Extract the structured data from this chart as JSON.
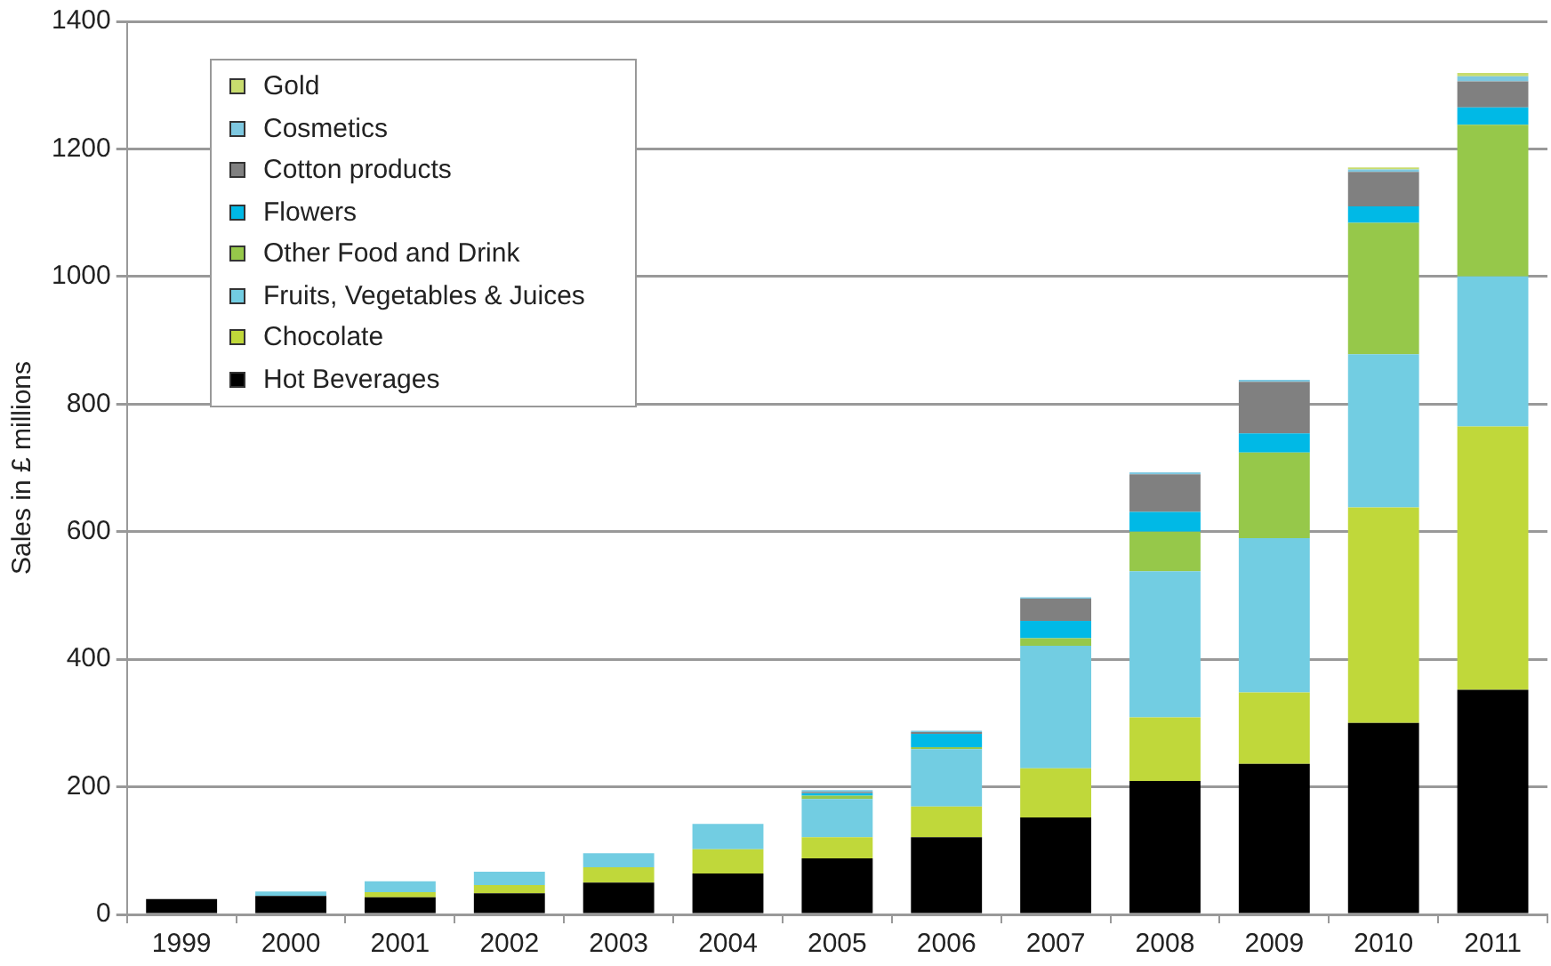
{
  "chart_data": {
    "type": "bar",
    "stacked": true,
    "ylabel": "Sales in £ millions",
    "categories": [
      "1999",
      "2000",
      "2001",
      "2002",
      "2003",
      "2004",
      "2005",
      "2006",
      "2007",
      "2008",
      "2009",
      "2010",
      "2011"
    ],
    "series": [
      {
        "name": "Hot Beverages",
        "color": "#000000",
        "values": [
          24,
          29,
          27,
          33,
          50,
          64,
          88,
          121,
          152,
          209,
          236,
          300,
          352
        ]
      },
      {
        "name": "Chocolate",
        "color": "#c0d83a",
        "values": [
          null,
          null,
          8,
          13,
          24,
          38,
          33,
          48,
          77,
          100,
          112,
          338,
          413
        ]
      },
      {
        "name": "Fruits, Vegetables & Juices",
        "color": "#72cde2",
        "values": [
          null,
          7,
          17,
          21,
          22,
          40,
          60,
          90,
          192,
          229,
          242,
          240,
          235
        ]
      },
      {
        "name": "Other Food and Drink",
        "color": "#96c84a",
        "values": [
          null,
          null,
          null,
          null,
          null,
          null,
          5,
          3,
          12,
          62,
          134,
          206,
          238
        ]
      },
      {
        "name": "Flowers",
        "color": "#00b9e6",
        "values": [
          null,
          null,
          null,
          null,
          null,
          null,
          4,
          21,
          27,
          31,
          30,
          26,
          27
        ]
      },
      {
        "name": "Cotton products",
        "color": "#808080",
        "values": [
          null,
          null,
          null,
          null,
          null,
          null,
          2,
          3,
          35,
          59,
          81,
          54,
          41
        ]
      },
      {
        "name": "Cosmetics",
        "color": "#7ec8e0",
        "values": [
          null,
          null,
          null,
          null,
          null,
          null,
          3,
          2,
          2,
          3,
          3,
          4,
          8
        ]
      },
      {
        "name": "Gold",
        "color": "#c8dc6e",
        "values": [
          null,
          null,
          null,
          null,
          null,
          null,
          null,
          null,
          null,
          null,
          null,
          3,
          5
        ]
      }
    ],
    "ylim": [
      0,
      1400
    ],
    "yticks": [
      0,
      200,
      400,
      600,
      800,
      1000,
      1200,
      1400
    ],
    "grid": "y",
    "legend": "top left"
  }
}
